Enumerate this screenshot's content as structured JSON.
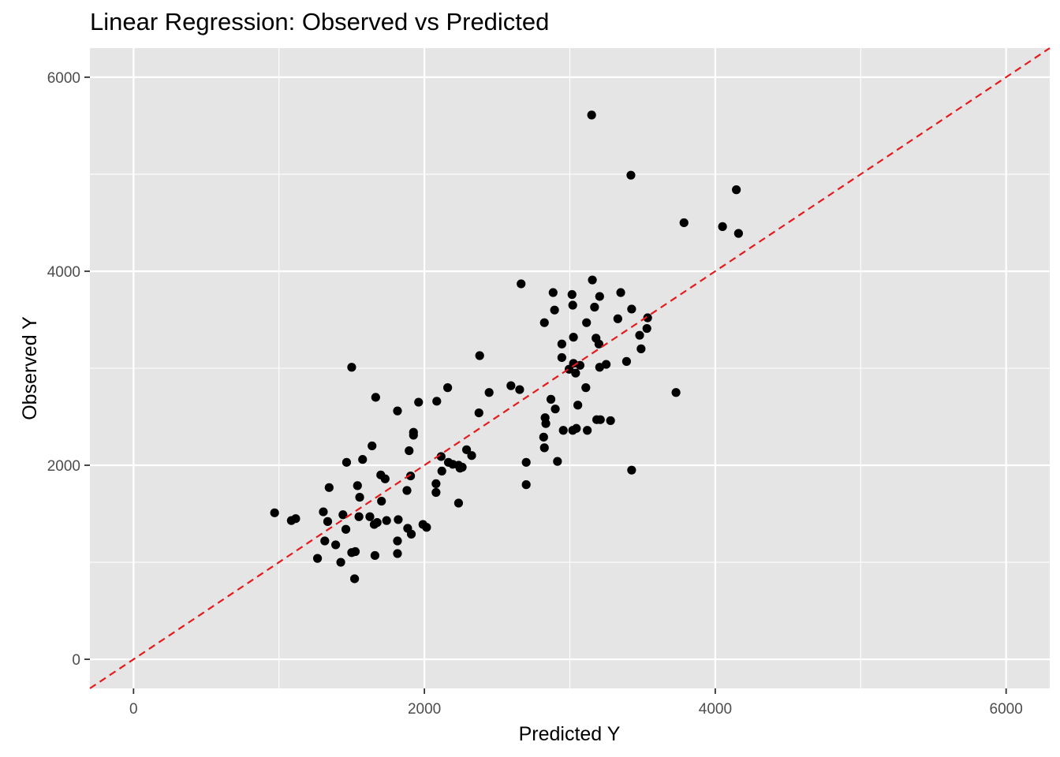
{
  "chart_data": {
    "type": "scatter",
    "title": "Linear Regression: Observed vs Predicted",
    "xlabel": "Predicted Y",
    "ylabel": "Observed Y",
    "xlim": [
      -300,
      6300
    ],
    "ylim": [
      -300,
      6300
    ],
    "xticks": [
      0,
      2000,
      4000,
      6000
    ],
    "yticks": [
      0,
      2000,
      4000,
      6000
    ],
    "xtick_labels": [
      "0",
      "2000",
      "4000",
      "6000"
    ],
    "ytick_labels": [
      "0",
      "2000",
      "4000",
      "6000"
    ],
    "grid": true,
    "legend": "none",
    "reference_line": {
      "type": "identity",
      "slope": 1,
      "intercept": 0,
      "style": "dashed",
      "color": "#e41a1c"
    },
    "colors": {
      "panel": "#e5e5e5",
      "grid": "#ffffff",
      "points": "#000000",
      "ticks": "#4d4d4d"
    },
    "points": [
      [
        3150,
        5610
      ],
      [
        3420,
        4990
      ],
      [
        4145,
        4840
      ],
      [
        3785,
        4500
      ],
      [
        4050,
        4460
      ],
      [
        4160,
        4390
      ],
      [
        3155,
        3910
      ],
      [
        2665,
        3870
      ],
      [
        2885,
        3780
      ],
      [
        3015,
        3760
      ],
      [
        3350,
        3780
      ],
      [
        3205,
        3740
      ],
      [
        3020,
        3650
      ],
      [
        3170,
        3630
      ],
      [
        2895,
        3600
      ],
      [
        3425,
        3610
      ],
      [
        2825,
        3470
      ],
      [
        3115,
        3470
      ],
      [
        3330,
        3510
      ],
      [
        3535,
        3520
      ],
      [
        3530,
        3410
      ],
      [
        3480,
        3340
      ],
      [
        3025,
        3320
      ],
      [
        3180,
        3310
      ],
      [
        2945,
        3250
      ],
      [
        3200,
        3250
      ],
      [
        3490,
        3200
      ],
      [
        2380,
        3130
      ],
      [
        2945,
        3110
      ],
      [
        3390,
        3070
      ],
      [
        1500,
        3010
      ],
      [
        3025,
        3050
      ],
      [
        3070,
        3030
      ],
      [
        3250,
        3040
      ],
      [
        2995,
        2990
      ],
      [
        3205,
        3010
      ],
      [
        3040,
        2950
      ],
      [
        2595,
        2820
      ],
      [
        2160,
        2800
      ],
      [
        2655,
        2780
      ],
      [
        2445,
        2750
      ],
      [
        3110,
        2800
      ],
      [
        3730,
        2750
      ],
      [
        1665,
        2700
      ],
      [
        2870,
        2680
      ],
      [
        1960,
        2650
      ],
      [
        2085,
        2660
      ],
      [
        2375,
        2540
      ],
      [
        1815,
        2560
      ],
      [
        2900,
        2580
      ],
      [
        3055,
        2620
      ],
      [
        2830,
        2490
      ],
      [
        2835,
        2430
      ],
      [
        3185,
        2470
      ],
      [
        3210,
        2470
      ],
      [
        3280,
        2460
      ],
      [
        2955,
        2360
      ],
      [
        3020,
        2360
      ],
      [
        3045,
        2380
      ],
      [
        3120,
        2360
      ],
      [
        1925,
        2340
      ],
      [
        1925,
        2310
      ],
      [
        2820,
        2290
      ],
      [
        1640,
        2200
      ],
      [
        2825,
        2180
      ],
      [
        1895,
        2150
      ],
      [
        2290,
        2160
      ],
      [
        2115,
        2090
      ],
      [
        2325,
        2100
      ],
      [
        1575,
        2060
      ],
      [
        1465,
        2030
      ],
      [
        2165,
        2030
      ],
      [
        2195,
        2010
      ],
      [
        2235,
        2000
      ],
      [
        2700,
        2030
      ],
      [
        2915,
        2040
      ],
      [
        2245,
        1970
      ],
      [
        2260,
        1980
      ],
      [
        2120,
        1940
      ],
      [
        3425,
        1950
      ],
      [
        1700,
        1900
      ],
      [
        1730,
        1860
      ],
      [
        1905,
        1890
      ],
      [
        2080,
        1810
      ],
      [
        2700,
        1800
      ],
      [
        1540,
        1790
      ],
      [
        1345,
        1770
      ],
      [
        1880,
        1740
      ],
      [
        2080,
        1720
      ],
      [
        1555,
        1670
      ],
      [
        1705,
        1630
      ],
      [
        2235,
        1610
      ],
      [
        970,
        1510
      ],
      [
        1305,
        1520
      ],
      [
        1440,
        1490
      ],
      [
        1550,
        1470
      ],
      [
        1625,
        1470
      ],
      [
        1085,
        1430
      ],
      [
        1115,
        1450
      ],
      [
        1740,
        1430
      ],
      [
        1820,
        1440
      ],
      [
        1335,
        1420
      ],
      [
        1675,
        1410
      ],
      [
        1655,
        1390
      ],
      [
        1990,
        1390
      ],
      [
        2015,
        1360
      ],
      [
        1460,
        1340
      ],
      [
        1885,
        1350
      ],
      [
        1910,
        1290
      ],
      [
        1315,
        1220
      ],
      [
        1390,
        1180
      ],
      [
        1815,
        1220
      ],
      [
        1525,
        1110
      ],
      [
        1500,
        1100
      ],
      [
        1815,
        1090
      ],
      [
        1660,
        1070
      ],
      [
        1265,
        1040
      ],
      [
        1425,
        1000
      ],
      [
        1520,
        830
      ]
    ]
  }
}
